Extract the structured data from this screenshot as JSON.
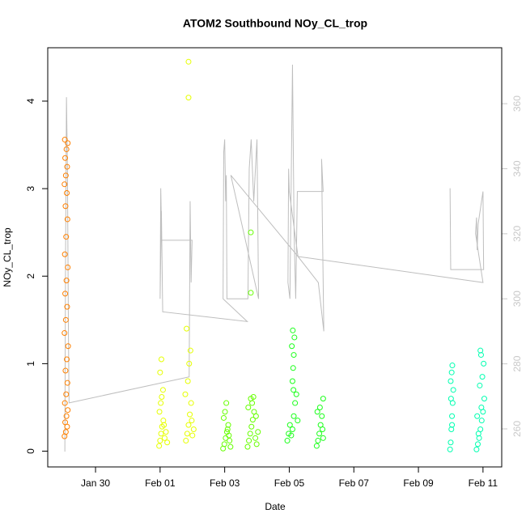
{
  "chart_data": {
    "type": "scatter",
    "title": "ATOM2 Southbound NOy_CL_trop",
    "x_label": "Date",
    "y_label": "NOy_CL_trop",
    "xlim": [
      28.52,
      42.58
    ],
    "xticks": [
      {
        "value": 30,
        "label": "Jan 30"
      },
      {
        "value": 32,
        "label": "Feb 01"
      },
      {
        "value": 34,
        "label": "Feb 03"
      },
      {
        "value": 36,
        "label": "Feb 05"
      },
      {
        "value": 38,
        "label": "Feb 07"
      },
      {
        "value": 40,
        "label": "Feb 09"
      },
      {
        "value": 42,
        "label": "Feb 11"
      }
    ],
    "ylim": [
      -0.18,
      4.61
    ],
    "yticks": [
      0,
      1,
      2,
      3,
      4
    ],
    "y2lim": [
      248.3,
      377.2
    ],
    "y2ticks": [
      260,
      280,
      300,
      320,
      340,
      360
    ],
    "y2_color": "#c8c8c8",
    "series": [
      {
        "type": "line",
        "axis": "y2",
        "color": "#bebebe",
        "x": [
          29.05,
          29.07,
          29.1,
          29.13,
          29.16,
          29.18,
          32.9,
          32.93,
          32.96,
          32.99,
          32.05,
          32.02,
          32.0,
          32.04,
          32.08,
          34.7,
          33.95,
          33.97,
          34.0,
          34.03,
          34.05,
          34.07,
          34.72,
          34.76,
          34.82,
          34.9,
          35.0,
          35.05,
          34.19,
          36.27,
          36.0,
          35.98,
          35.96,
          36.02,
          36.1,
          36.15,
          36.2,
          36.25,
          37.05,
          37.0,
          37.07,
          36.9,
          36.27,
          42.0,
          41.77,
          41.8,
          41.82,
          41.85,
          42.0,
          42.02,
          41.0,
          40.98,
          41.0
        ],
        "values": [
          253,
          310,
          362,
          340,
          290,
          268,
          276,
          330,
          305,
          318,
          318,
          334,
          300,
          327,
          296,
          293,
          300,
          345,
          349,
          330,
          338,
          300,
          300,
          340,
          349,
          330,
          349,
          300,
          338,
          313,
          333,
          340,
          305,
          300,
          372,
          320,
          300,
          333,
          333,
          343,
          290,
          305,
          313,
          305,
          320,
          325,
          315,
          323,
          333,
          309,
          309,
          334,
          309
        ]
      },
      {
        "color": "#ff8000",
        "x": [
          29.04,
          29.08,
          29.12,
          29.06,
          29.1,
          29.14,
          29.05,
          29.09,
          29.13,
          29.07,
          29.11,
          29.15,
          29.04,
          29.08,
          29.12,
          29.06,
          29.1,
          29.14,
          29.05,
          29.09,
          29.13,
          29.07,
          29.11,
          29.04,
          29.08,
          29.12,
          29.06,
          29.1,
          29.14,
          29.05
        ],
        "values": [
          0.17,
          0.22,
          0.28,
          0.33,
          0.4,
          0.47,
          0.55,
          0.65,
          0.78,
          0.92,
          1.05,
          1.2,
          1.35,
          1.5,
          1.65,
          1.8,
          1.95,
          2.1,
          2.25,
          2.45,
          2.65,
          2.8,
          2.95,
          3.05,
          3.15,
          3.25,
          3.35,
          3.45,
          3.52,
          3.56
        ]
      },
      {
        "color": "#e6ff00",
        "x": [
          31.97,
          32.0,
          32.03,
          32.06,
          32.1,
          32.14,
          32.18,
          32.22,
          31.98,
          32.02,
          32.05,
          32.09,
          32.12,
          32.0,
          32.04,
          32.8,
          32.84,
          32.88,
          32.92,
          32.96,
          33.0,
          33.04,
          32.78,
          32.86,
          32.9,
          32.94,
          32.98,
          32.88,
          32.88,
          32.82
        ],
        "values": [
          0.06,
          0.12,
          0.2,
          0.28,
          0.35,
          0.15,
          0.22,
          0.1,
          0.45,
          0.55,
          0.62,
          0.7,
          0.3,
          0.9,
          1.05,
          0.12,
          0.2,
          0.3,
          0.42,
          0.55,
          0.18,
          0.25,
          0.65,
          0.8,
          1.0,
          1.15,
          0.35,
          4.45,
          4.04,
          1.4
        ]
      },
      {
        "color": "#66ff00",
        "x": [
          33.95,
          33.99,
          34.03,
          34.07,
          34.11,
          34.15,
          34.18,
          33.97,
          34.01,
          34.05,
          34.09,
          34.13,
          34.71,
          34.75,
          34.79,
          34.83,
          34.87,
          34.91,
          34.95,
          34.99,
          35.03,
          34.73,
          34.81,
          34.89,
          34.97,
          34.85,
          34.81,
          34.81
        ],
        "values": [
          0.03,
          0.08,
          0.15,
          0.22,
          0.3,
          0.12,
          0.05,
          0.38,
          0.45,
          0.55,
          0.25,
          0.18,
          0.05,
          0.12,
          0.2,
          0.28,
          0.36,
          0.45,
          0.15,
          0.08,
          0.22,
          0.5,
          0.6,
          0.62,
          0.4,
          0.55,
          2.5,
          1.81
        ]
      },
      {
        "color": "#1aff1a",
        "x": [
          35.94,
          35.98,
          36.02,
          36.06,
          36.1,
          36.14,
          36.18,
          36.22,
          36.26,
          36.1,
          36.12,
          36.14,
          36.08,
          36.16,
          36.11,
          36.13,
          36.85,
          36.89,
          36.93,
          36.97,
          37.01,
          37.05,
          36.87,
          36.95,
          37.03,
          37.05
        ],
        "values": [
          0.12,
          0.2,
          0.3,
          0.18,
          0.25,
          0.4,
          0.55,
          0.65,
          0.35,
          0.8,
          0.95,
          1.1,
          1.2,
          1.3,
          1.38,
          0.7,
          0.06,
          0.12,
          0.2,
          0.3,
          0.4,
          0.15,
          0.45,
          0.5,
          0.25,
          0.6
        ]
      },
      {
        "color": "#00ffb0",
        "x": [
          40.98,
          41.0,
          41.02,
          41.04,
          41.06,
          41.08,
          41.0,
          41.03,
          41.05,
          41.01,
          41.04,
          41.8,
          41.84,
          41.88,
          41.92,
          41.96,
          42.0,
          42.04,
          41.82,
          41.9,
          41.98,
          42.02,
          41.86,
          41.94,
          41.92,
          41.95
        ],
        "values": [
          0.02,
          0.1,
          0.25,
          0.4,
          0.55,
          0.7,
          0.8,
          0.9,
          0.98,
          0.6,
          0.3,
          0.02,
          0.08,
          0.15,
          0.25,
          0.35,
          0.45,
          0.6,
          0.4,
          0.75,
          0.85,
          1.0,
          0.2,
          1.1,
          1.15,
          0.5
        ]
      }
    ]
  }
}
